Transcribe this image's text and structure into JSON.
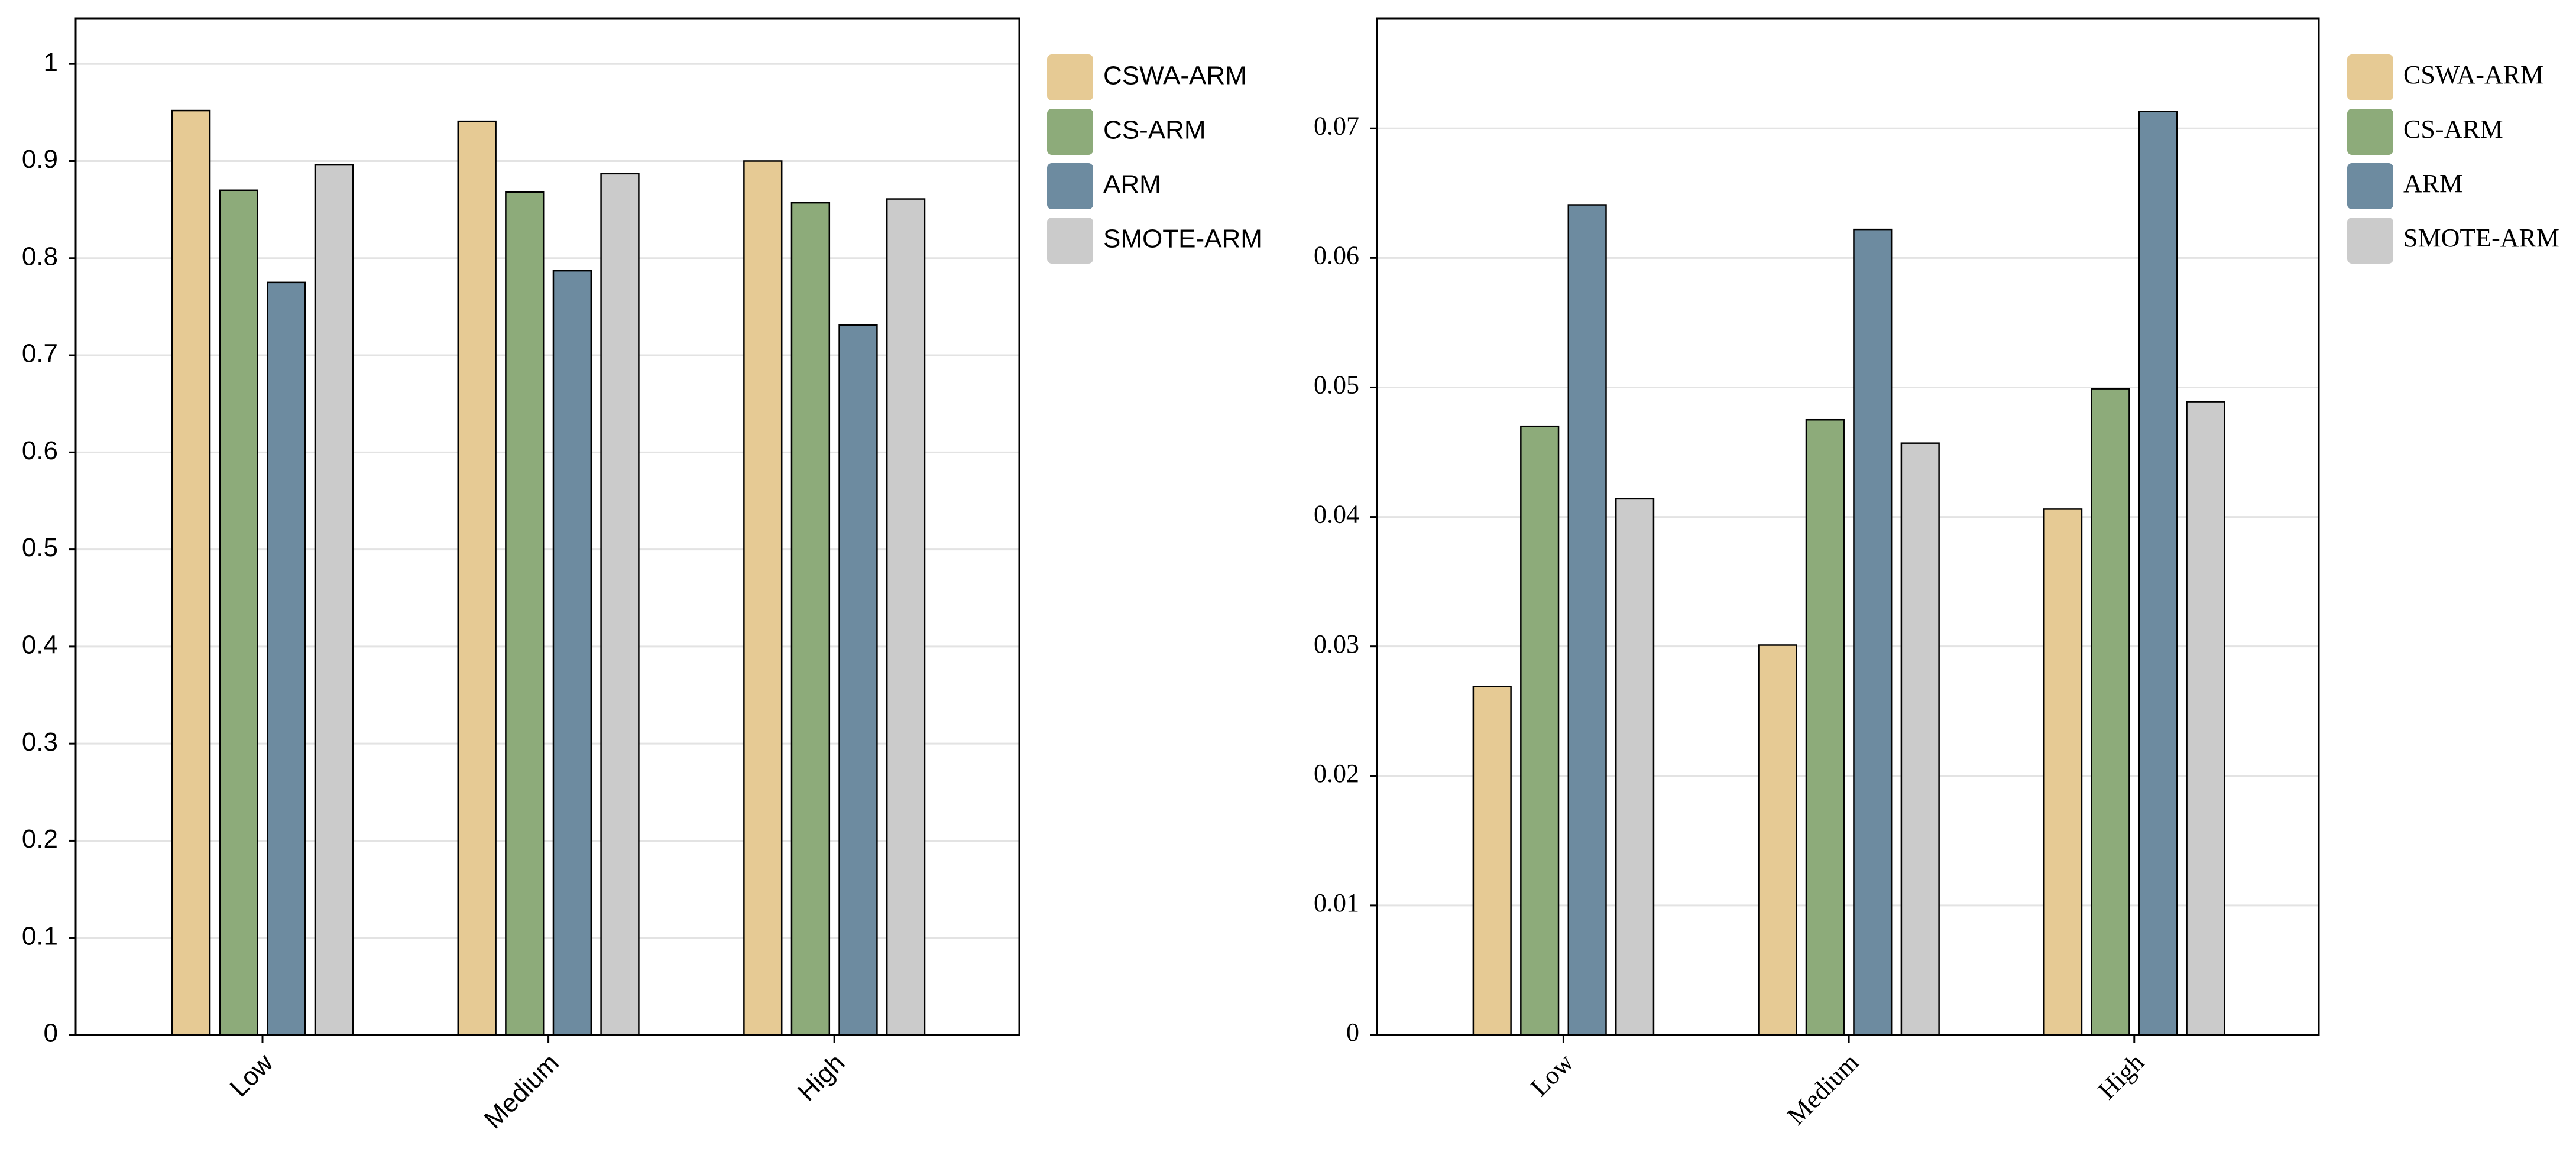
{
  "chart_data": [
    {
      "type": "bar",
      "categories": [
        "Low",
        "Medium",
        "High"
      ],
      "series": [
        {
          "name": "CSWA-ARM",
          "color": "#e6ca94",
          "values": [
            0.952,
            0.941,
            0.9
          ]
        },
        {
          "name": "CS-ARM",
          "color": "#8dab7a",
          "values": [
            0.87,
            0.868,
            0.857
          ]
        },
        {
          "name": "ARM",
          "color": "#6d8ba0",
          "values": [
            0.775,
            0.787,
            0.731
          ]
        },
        {
          "name": "SMOTE-ARM",
          "color": "#cbcbcb",
          "values": [
            0.896,
            0.887,
            0.861
          ]
        }
      ],
      "ylim": [
        0,
        1.047
      ],
      "yticks": [
        0,
        0.1,
        0.2,
        0.3,
        0.4,
        0.5,
        0.6,
        0.7,
        0.8,
        0.9,
        1
      ],
      "grid": true
    },
    {
      "type": "bar",
      "categories": [
        "Low",
        "Medium",
        "High"
      ],
      "series": [
        {
          "name": "CSWA-ARM",
          "color": "#e6ca94",
          "values": [
            0.0269,
            0.0301,
            0.0406
          ]
        },
        {
          "name": "CS-ARM",
          "color": "#8dab7a",
          "values": [
            0.047,
            0.0475,
            0.0499
          ]
        },
        {
          "name": "ARM",
          "color": "#6d8ba0",
          "values": [
            0.0641,
            0.0622,
            0.0713
          ]
        },
        {
          "name": "SMOTE-ARM",
          "color": "#cbcbcb",
          "values": [
            0.0414,
            0.0457,
            0.0489
          ]
        }
      ],
      "ylim": [
        0,
        0.0785
      ],
      "yticks": [
        0,
        0.01,
        0.02,
        0.03,
        0.04,
        0.05,
        0.06,
        0.07
      ],
      "grid": true
    }
  ]
}
